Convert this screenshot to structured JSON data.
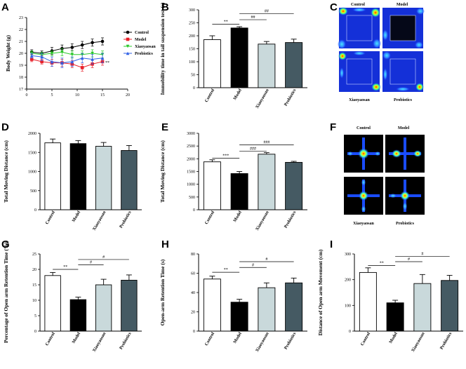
{
  "colors": {
    "Control": "#ffffff",
    "Model": "#000000",
    "Xiaoyaosan": "#c9d9db",
    "Probiotics": "#455a63",
    "line_Control": "#000000",
    "line_Model": "#e8202a",
    "line_Xiaoyaosan": "#29c829",
    "line_Probiotics": "#2f5fe6"
  },
  "chart_data": [
    {
      "id": "A",
      "panel_label": "A",
      "type": "line",
      "xlabel": "",
      "ylabel": "Body Weight (g)",
      "xlim": [
        0,
        20
      ],
      "ylim": [
        17,
        23
      ],
      "xticks": [
        0,
        5,
        10,
        15,
        20
      ],
      "yticks": [
        17,
        18,
        19,
        20,
        21,
        22,
        23
      ],
      "x": [
        1,
        3,
        5,
        7,
        9,
        11,
        13,
        15
      ],
      "series": [
        {
          "name": "Control",
          "marker": "circle",
          "values": [
            20.1,
            20.0,
            20.2,
            20.4,
            20.5,
            20.7,
            20.9,
            21.0
          ],
          "errors": [
            0.2,
            0.2,
            0.3,
            0.3,
            0.3,
            0.3,
            0.3,
            0.3
          ]
        },
        {
          "name": "Model",
          "marker": "square",
          "values": [
            19.5,
            19.3,
            19.2,
            19.2,
            19.1,
            18.8,
            19.1,
            19.3
          ],
          "errors": [
            0.2,
            0.2,
            0.3,
            0.3,
            0.3,
            0.3,
            0.3,
            0.3
          ]
        },
        {
          "name": "Xiaoyaosan",
          "marker": "triangle-down",
          "values": [
            20.0,
            19.9,
            20.0,
            20.1,
            19.9,
            19.9,
            20.0,
            19.9
          ],
          "errors": [
            0.2,
            0.2,
            0.2,
            0.3,
            0.3,
            0.3,
            0.3,
            0.3
          ]
        },
        {
          "name": "Probiotics",
          "marker": "triangle-up",
          "values": [
            19.8,
            19.7,
            19.3,
            19.2,
            19.3,
            19.6,
            19.5,
            19.6
          ],
          "errors": [
            0.2,
            0.3,
            0.4,
            0.4,
            0.4,
            0.4,
            0.4,
            0.4
          ]
        }
      ],
      "annotations": [
        "**"
      ],
      "legend": "top-right"
    },
    {
      "id": "B",
      "panel_label": "B",
      "type": "bar",
      "categories": [
        "Control",
        "Model",
        "Xiaoyaosan",
        "Probiotics"
      ],
      "values": [
        185,
        230,
        168,
        174
      ],
      "errors": [
        15,
        5,
        10,
        13
      ],
      "ylabel": "Immobility time in tail suspension test (s)",
      "ylim": [
        0,
        300
      ],
      "yticks": [
        0,
        50,
        100,
        150,
        200,
        250,
        300
      ],
      "significance": [
        {
          "from": 0,
          "to": 1,
          "label": "**",
          "value": 245
        },
        {
          "from": 1,
          "to": 2,
          "label": "##",
          "value": 262
        },
        {
          "from": 1,
          "to": 3,
          "label": "##",
          "value": 285
        }
      ]
    },
    {
      "id": "D",
      "panel_label": "D",
      "type": "bar",
      "categories": [
        "Control",
        "Model",
        "Xiaoyaosan",
        "Probiotics"
      ],
      "values": [
        1750,
        1730,
        1660,
        1550
      ],
      "errors": [
        100,
        80,
        100,
        130
      ],
      "ylabel": "Total Moving Distance (cm)",
      "ylim": [
        0,
        2000
      ],
      "yticks": [
        0,
        500,
        1000,
        1500,
        2000
      ],
      "significance": []
    },
    {
      "id": "E",
      "panel_label": "E",
      "type": "bar",
      "categories": [
        "Control",
        "Model",
        "Xiaoyaosan",
        "Probiotics"
      ],
      "values": [
        1880,
        1420,
        2180,
        1860
      ],
      "errors": [
        80,
        80,
        60,
        40
      ],
      "ylabel": "Total Moving Distance (cm)",
      "ylim": [
        0,
        3000
      ],
      "yticks": [
        0,
        500,
        1000,
        1500,
        2000,
        2500,
        3000
      ],
      "significance": [
        {
          "from": 0,
          "to": 1,
          "label": "***",
          "value": 2020
        },
        {
          "from": 1,
          "to": 2,
          "label": "###",
          "value": 2300
        },
        {
          "from": 1,
          "to": 3,
          "label": "###",
          "value": 2550
        }
      ]
    },
    {
      "id": "G",
      "panel_label": "G",
      "type": "bar",
      "categories": [
        "Control",
        "Model",
        "Xiaoyaosan",
        "Probiotics"
      ],
      "values": [
        18,
        10.2,
        15.0,
        16.5
      ],
      "errors": [
        1.0,
        0.8,
        1.8,
        1.7
      ],
      "ylabel": "Percentage of Open arm Retention Time (%)",
      "ylim": [
        0,
        25
      ],
      "yticks": [
        0,
        5,
        10,
        15,
        20,
        25
      ],
      "significance": [
        {
          "from": 0,
          "to": 1,
          "label": "**",
          "value": 20.0
        },
        {
          "from": 1,
          "to": 2,
          "label": "#",
          "value": 21.5
        },
        {
          "from": 1,
          "to": 3,
          "label": "#",
          "value": 23.2
        }
      ]
    },
    {
      "id": "H",
      "panel_label": "H",
      "type": "bar",
      "categories": [
        "Control",
        "Model",
        "Xiaoyaosan",
        "Probiotics"
      ],
      "values": [
        54,
        30,
        45,
        50
      ],
      "errors": [
        3,
        3,
        5,
        5
      ],
      "ylabel": "Open-arm Retention Time (s)",
      "ylim": [
        0,
        80
      ],
      "yticks": [
        0,
        20,
        40,
        60,
        80
      ],
      "significance": [
        {
          "from": 0,
          "to": 1,
          "label": "**",
          "value": 61
        },
        {
          "from": 1,
          "to": 2,
          "label": "#",
          "value": 66
        },
        {
          "from": 1,
          "to": 3,
          "label": "#",
          "value": 72
        }
      ]
    },
    {
      "id": "I",
      "panel_label": "I",
      "type": "bar",
      "categories": [
        "Control",
        "Model",
        "Xiaoyaosan",
        "Probiotics"
      ],
      "values": [
        228,
        110,
        185,
        197
      ],
      "errors": [
        18,
        10,
        35,
        20
      ],
      "ylabel": "Distance of Open arm Movement (cm)",
      "ylim": [
        0,
        300
      ],
      "yticks": [
        0,
        100,
        200,
        300
      ],
      "significance": [
        {
          "from": 0,
          "to": 1,
          "label": "**",
          "value": 255
        },
        {
          "from": 1,
          "to": 2,
          "label": "#",
          "value": 270
        },
        {
          "from": 1,
          "to": 3,
          "label": "#",
          "value": 290
        }
      ]
    }
  ],
  "image_panels": [
    {
      "id": "C",
      "panel_label": "C",
      "kind": "heatmap-open-field",
      "labels": {
        "top_left": "Control",
        "top_right": "Model",
        "bottom_left": "Xiaoyaosan",
        "bottom_right": "Probiotics"
      }
    },
    {
      "id": "F",
      "panel_label": "F",
      "kind": "heatmap-plus-maze",
      "labels": {
        "top_left": "Control",
        "top_right": "Model",
        "bottom_left": "Xiaoyaosan",
        "bottom_right": "Probiotics"
      }
    }
  ]
}
